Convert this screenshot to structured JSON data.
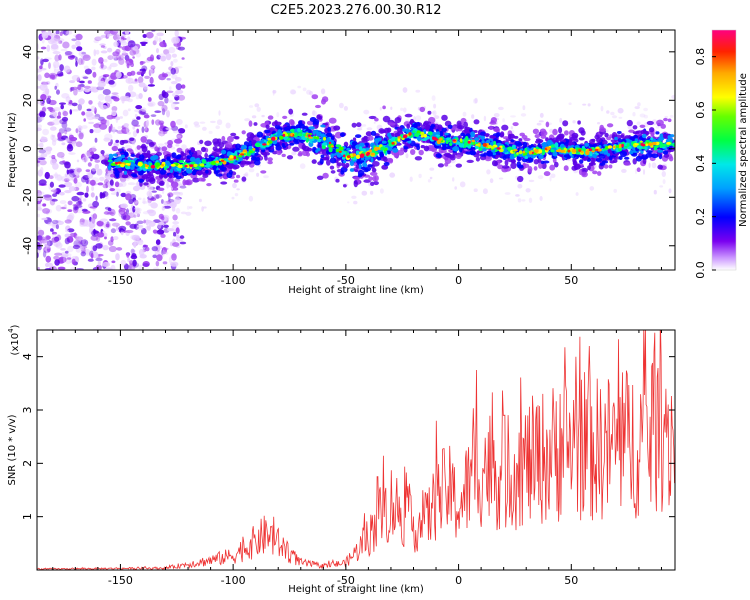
{
  "title": "C2E5.2023.276.00.30.R12",
  "chart_data": [
    {
      "type": "heatmap",
      "xlabel": "Height of straight line (km)",
      "ylabel": "Frequency (Hz)",
      "xlim": [
        -187,
        96
      ],
      "ylim": [
        -50,
        49
      ],
      "xticks": [
        -150,
        -100,
        -50,
        0,
        50
      ],
      "yticks": [
        -40,
        -20,
        0,
        20,
        40
      ],
      "ridge_x": [
        -150,
        -140,
        -130,
        -120,
        -110,
        -100,
        -90,
        -80,
        -70,
        -60,
        -50,
        -40,
        -30,
        -20,
        -10,
        0,
        10,
        20,
        30,
        40,
        50,
        60,
        70,
        80,
        90
      ],
      "ridge_freq": [
        -6,
        -7,
        -7,
        -7,
        -6,
        -4,
        0,
        5,
        6,
        4,
        -3,
        -2,
        2,
        7,
        4,
        3,
        2,
        0,
        -2,
        0,
        -1,
        -1,
        1,
        2,
        2
      ],
      "colorbar": {
        "label": "Normalized spectral amplitude",
        "range": [
          0.0,
          0.9
        ],
        "ticks": [
          0.0,
          0.2,
          0.4,
          0.6,
          0.8
        ],
        "tick_labels": [
          "0.0",
          "0.2",
          "0.4",
          "0.6",
          "0.8"
        ]
      },
      "colors": [
        "#ffffff",
        "#e6ccff",
        "#a040f0",
        "#5a00e6",
        "#0000ff",
        "#0090ff",
        "#00e0e0",
        "#00ff66",
        "#33ff00",
        "#ccff00",
        "#ffff00",
        "#ffaa00",
        "#ff3300",
        "#ff0044",
        "#ff0080"
      ]
    },
    {
      "type": "line",
      "xlabel": "Height of straight line (km)",
      "ylabel": "SNR (10 * v/v)",
      "y_multiplier_label": "(x10",
      "y_multiplier_exp": "4",
      "xlim": [
        -187,
        96
      ],
      "ylim": [
        0,
        4.5
      ],
      "xticks": [
        -150,
        -100,
        -50,
        0,
        50
      ],
      "yticks": [
        1,
        2,
        3,
        4
      ],
      "series": [
        {
          "name": "SNR",
          "color": "#ee3333",
          "envelope_x": [
            -187,
            -130,
            -120,
            -110,
            -100,
            -90,
            -85,
            -80,
            -70,
            -60,
            -50,
            -45,
            -40,
            -35,
            -30,
            -25,
            -20,
            -15,
            -10,
            -5,
            0,
            5,
            10,
            20,
            30,
            40,
            50,
            60,
            70,
            80,
            90,
            96
          ],
          "envelope_y": [
            0.02,
            0.04,
            0.12,
            0.2,
            0.3,
            0.6,
            0.75,
            0.55,
            0.15,
            0.08,
            0.15,
            0.4,
            0.7,
            1.1,
            1.4,
            1.2,
            0.9,
            1.0,
            1.4,
            1.7,
            1.3,
            1.8,
            2.2,
            2.0,
            2.2,
            2.4,
            2.6,
            2.5,
            2.6,
            2.7,
            2.9,
            2.8
          ],
          "peaks": [
            {
              "x": -82,
              "y": 1.0
            },
            {
              "x": -36,
              "y": 1.75
            },
            {
              "x": -10,
              "y": 2.8
            },
            {
              "x": 8,
              "y": 3.75
            },
            {
              "x": 20,
              "y": 2.9
            },
            {
              "x": 45,
              "y": 3.3
            },
            {
              "x": 52,
              "y": 4.0
            },
            {
              "x": 58,
              "y": 4.2
            },
            {
              "x": 87,
              "y": 4.45
            },
            {
              "x": 92,
              "y": 3.4
            }
          ]
        }
      ]
    }
  ]
}
